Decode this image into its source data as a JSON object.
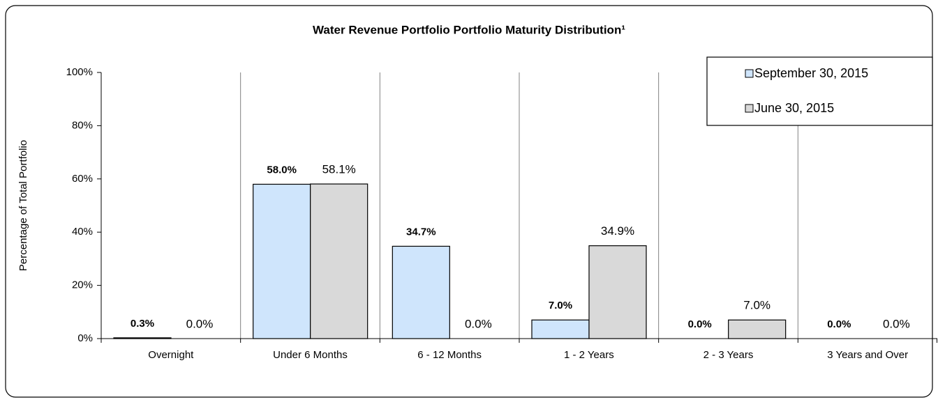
{
  "chart_data": {
    "type": "bar",
    "title": "Water Revenue Portfolio Portfolio Maturity Distribution¹",
    "y_label": "Percentage of Total Portfolio",
    "categories": [
      "Overnight",
      "Under 6 Months",
      "6 - 12 Months",
      "1 - 2 Years",
      "2 - 3 Years",
      "3 Years and Over"
    ],
    "series": [
      {
        "name": "September 30, 2015",
        "color": "#cfe5fc",
        "values": [
          0.3,
          58.0,
          34.7,
          7.0,
          0.0,
          0.0
        ],
        "value_labels": [
          "0.3%",
          "58.0%",
          "34.7%",
          "7.0%",
          "0.0%",
          "0.0%"
        ]
      },
      {
        "name": "June 30, 2015",
        "color": "#d9d9d9",
        "values": [
          0.0,
          58.1,
          0.0,
          34.9,
          7.0,
          0.0
        ],
        "value_labels": [
          "0.0%",
          "58.1%",
          "0.0%",
          "34.9%",
          "7.0%",
          "0.0%"
        ]
      }
    ],
    "ylim": [
      0,
      100
    ],
    "yticks": [
      {
        "value": 0,
        "label": "0%"
      },
      {
        "value": 20,
        "label": "20%"
      },
      {
        "value": 40,
        "label": "40%"
      },
      {
        "value": 60,
        "label": "60%"
      },
      {
        "value": 80,
        "label": "80%"
      },
      {
        "value": 100,
        "label": "100%"
      }
    ],
    "legend": "upper right"
  }
}
